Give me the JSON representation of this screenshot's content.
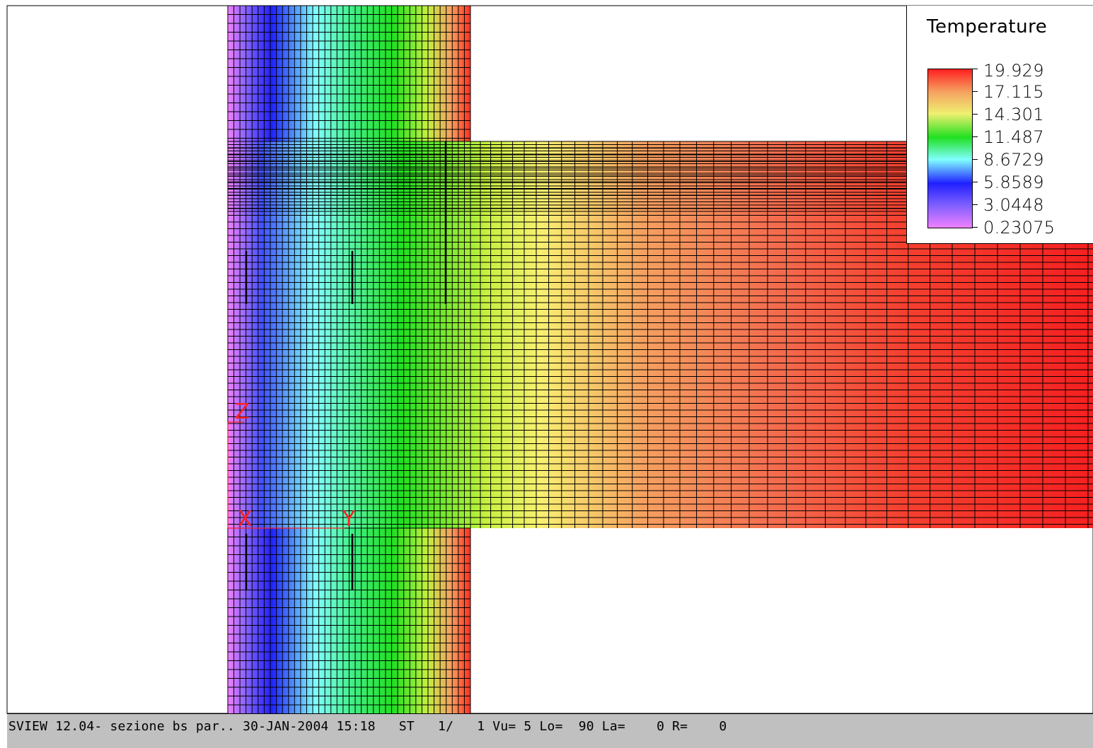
{
  "status_bar": {
    "text": "SVIEW 12.04- sezione bs par.. 30-JAN-2004 15:18   ST   1/   1 Vu= 5 Lo=  90 La=    0 R=    0"
  },
  "legend": {
    "title": "Temperature",
    "labels": [
      "19.929",
      "17.115",
      "14.301",
      "11.487",
      "8.6729",
      "5.8589",
      "3.0448",
      "0.23075"
    ],
    "colors": [
      "#ff2020",
      "#f5a060",
      "#f0f070",
      "#20e020",
      "#80ffff",
      "#2020ff",
      "#f080ff"
    ]
  },
  "axes": {
    "x_label": "X",
    "y_label": "Y",
    "z_label": "Z",
    "color": "#ff2020"
  },
  "colors": {
    "mesh_line": "#000000",
    "background": "#ffffff",
    "status_bg": "#c0c0c0"
  },
  "chart_data": {
    "type": "heatmap",
    "quantity": "Temperature",
    "min": 0.23075,
    "max": 19.929
  }
}
